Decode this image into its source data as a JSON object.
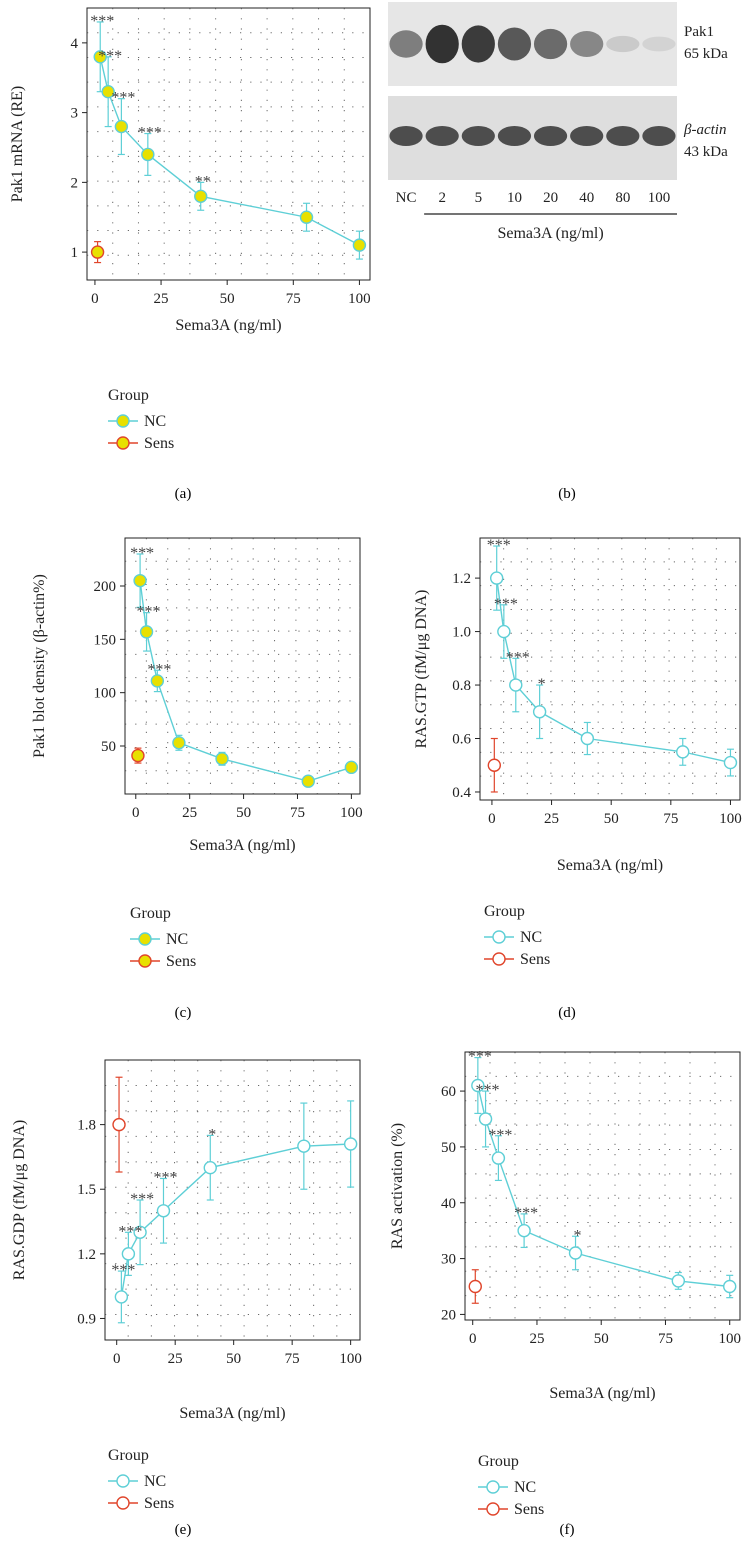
{
  "colors": {
    "nc": "#5ecfd6",
    "sens": "#e0452b",
    "nc_fill_yellow": "#e8e000",
    "axis": "#222222",
    "grid": "#444444",
    "err": "#5ecfd6"
  },
  "panel_labels": [
    "(a)",
    "(b)",
    "(c)",
    "(d)",
    "(e)",
    "(f)"
  ],
  "blot": {
    "band1_label": "Pak1",
    "band1_kda": "65 kDa",
    "band2_label": "β-actin",
    "band2_kda": "43 kDa",
    "lanes": [
      "NC",
      "2",
      "5",
      "10",
      "20",
      "40",
      "80",
      "100"
    ],
    "xlabel": "Sema3A (ng/ml)",
    "pak1_intensity": [
      0.55,
      0.95,
      0.9,
      0.75,
      0.65,
      0.5,
      0.15,
      0.1
    ],
    "actin_intensity": [
      0.85,
      0.85,
      0.85,
      0.85,
      0.85,
      0.85,
      0.85,
      0.85
    ]
  },
  "chart_data": [
    {
      "id": "a",
      "type": "line",
      "title": "",
      "xlabel": "Sema3A (ng/ml)",
      "ylabel": "Pak1 mRNA (RE)",
      "xlim": [
        -3,
        104
      ],
      "ylim": [
        0.6,
        4.5
      ],
      "xticks": [
        0,
        25,
        50,
        75,
        100
      ],
      "yticks": [
        1,
        2,
        3,
        4
      ],
      "grid": true,
      "marker_fill": "yellow",
      "legend_title": "Group",
      "legend_labels": [
        "NC",
        "Sens"
      ],
      "series": [
        {
          "name": "NC",
          "x": [
            2,
            5,
            10,
            20,
            40,
            80,
            100
          ],
          "y": [
            3.8,
            3.3,
            2.8,
            2.4,
            1.8,
            1.5,
            1.1
          ],
          "err": [
            0.5,
            0.5,
            0.4,
            0.3,
            0.2,
            0.2,
            0.2
          ],
          "sig": [
            "***",
            "***",
            "***",
            "***",
            "**",
            "",
            ""
          ]
        },
        {
          "name": "Sens",
          "x": [
            1
          ],
          "y": [
            1.0
          ],
          "err": [
            0.15
          ],
          "sig": [
            ""
          ]
        }
      ]
    },
    {
      "id": "c",
      "type": "line",
      "title": "",
      "xlabel": "Sema3A (ng/ml)",
      "ylabel": "Pak1 blot density (β-actin%)",
      "xlim": [
        -5,
        104
      ],
      "ylim": [
        5,
        245
      ],
      "xticks": [
        0,
        25,
        50,
        75,
        100
      ],
      "yticks": [
        50,
        100,
        150,
        200
      ],
      "grid": true,
      "marker_fill": "yellow",
      "legend_title": "Group",
      "legend_labels": [
        "NC",
        "Sens"
      ],
      "series": [
        {
          "name": "NC",
          "x": [
            2,
            5,
            10,
            20,
            40,
            80,
            100
          ],
          "y": [
            205,
            157,
            111,
            53,
            38,
            17,
            30
          ],
          "err": [
            25,
            18,
            10,
            7,
            6,
            3,
            3
          ],
          "sig": [
            "***",
            "***",
            "***",
            "",
            "",
            "",
            ""
          ]
        },
        {
          "name": "Sens",
          "x": [
            1
          ],
          "y": [
            41
          ],
          "err": [
            7
          ],
          "sig": [
            ""
          ]
        }
      ]
    },
    {
      "id": "d",
      "type": "line",
      "title": "",
      "xlabel": "Sema3A (ng/ml)",
      "ylabel": "RAS.GTP (fM/μg DNA)",
      "xlim": [
        -5,
        104
      ],
      "ylim": [
        0.37,
        1.35
      ],
      "xticks": [
        0,
        25,
        50,
        75,
        100
      ],
      "yticks": [
        0.4,
        0.6,
        0.8,
        1.0,
        1.2
      ],
      "ytick_labels": [
        "0.4",
        "0.6",
        "0.8",
        "1.0",
        "1.2"
      ],
      "grid": true,
      "marker_fill": "white",
      "legend_title": "Group",
      "legend_labels": [
        "NC",
        "Sens"
      ],
      "series": [
        {
          "name": "NC",
          "x": [
            2,
            5,
            10,
            20,
            40,
            80,
            100
          ],
          "y": [
            1.2,
            1.0,
            0.8,
            0.7,
            0.6,
            0.55,
            0.51
          ],
          "err": [
            0.12,
            0.1,
            0.1,
            0.1,
            0.06,
            0.05,
            0.05
          ],
          "sig": [
            "***",
            "***",
            "***",
            "*",
            "",
            "",
            ""
          ]
        },
        {
          "name": "Sens",
          "x": [
            1
          ],
          "y": [
            0.5
          ],
          "err": [
            0.1
          ],
          "sig": [
            ""
          ]
        }
      ]
    },
    {
      "id": "e",
      "type": "line",
      "title": "",
      "xlabel": "Sema3A (ng/ml)",
      "ylabel": "RAS.GDP (fM/μg DNA)",
      "xlim": [
        -5,
        104
      ],
      "ylim": [
        0.8,
        2.1
      ],
      "xticks": [
        0,
        25,
        50,
        75,
        100
      ],
      "yticks": [
        0.9,
        1.2,
        1.5,
        1.8
      ],
      "ytick_labels": [
        "0.9",
        "1.2",
        "1.5",
        "1.8"
      ],
      "grid": true,
      "marker_fill": "white",
      "legend_title": "Group",
      "legend_labels": [
        "NC",
        "Sens"
      ],
      "series": [
        {
          "name": "NC",
          "x": [
            2,
            5,
            10,
            20,
            40,
            80,
            100
          ],
          "y": [
            1.0,
            1.2,
            1.3,
            1.4,
            1.6,
            1.7,
            1.71
          ],
          "err": [
            0.12,
            0.1,
            0.15,
            0.15,
            0.15,
            0.2,
            0.2
          ],
          "sig": [
            "***",
            "***",
            "***",
            "***",
            "*",
            "",
            ""
          ]
        },
        {
          "name": "Sens",
          "x": [
            1
          ],
          "y": [
            1.8
          ],
          "err": [
            0.22
          ],
          "sig": [
            ""
          ]
        }
      ]
    },
    {
      "id": "f",
      "type": "line",
      "title": "",
      "xlabel": "Sema3A (ng/ml)",
      "ylabel": "RAS activation (%)",
      "xlim": [
        -3,
        104
      ],
      "ylim": [
        19,
        67
      ],
      "xticks": [
        0,
        25,
        50,
        75,
        100
      ],
      "yticks": [
        20,
        30,
        40,
        50,
        60
      ],
      "grid": true,
      "marker_fill": "white",
      "legend_title": "Group",
      "legend_labels": [
        "NC",
        "Sens"
      ],
      "series": [
        {
          "name": "NC",
          "x": [
            2,
            5,
            10,
            20,
            40,
            80,
            100
          ],
          "y": [
            61,
            55,
            48,
            35,
            31,
            26,
            25
          ],
          "err": [
            5,
            5,
            4,
            3,
            3,
            1.5,
            2
          ],
          "sig": [
            "***",
            "***",
            "***",
            "***",
            "*",
            "",
            ""
          ]
        },
        {
          "name": "Sens",
          "x": [
            1
          ],
          "y": [
            25
          ],
          "err": [
            3
          ],
          "sig": [
            ""
          ]
        }
      ]
    }
  ]
}
